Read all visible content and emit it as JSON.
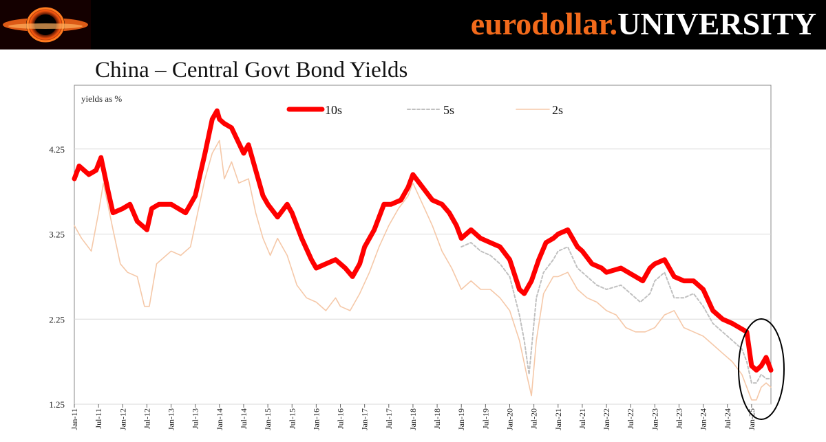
{
  "header": {
    "brand_part1": "eurodollar.",
    "brand_part2": "UNIVERSITY",
    "colors": {
      "banner": "#000000",
      "brand_orange": "#f26a1b",
      "brand_white": "#ffffff"
    }
  },
  "page_title": "China – Central Govt Bond Yields",
  "chart_data": {
    "type": "line",
    "title": "China – Central Govt Bond Yields",
    "ylabel": "yields as %",
    "xlabel": "",
    "yticks": [
      1.25,
      2.25,
      3.25,
      4.25
    ],
    "ytick_labels": [
      "1.25",
      "2.25",
      "3.25",
      "4.25"
    ],
    "ylim": [
      1.25,
      5.0
    ],
    "xlim": [
      2011.0,
      2025.4
    ],
    "xtick_labels": [
      "Jan-11",
      "Jul-11",
      "Jan-12",
      "Jul-12",
      "Jan-13",
      "Jul-13",
      "Jan-14",
      "Jul-14",
      "Jan-15",
      "Jul-15",
      "Jan-16",
      "Jul-16",
      "Jan-17",
      "Jul-17",
      "Jan-18",
      "Jul-18",
      "Jan-19",
      "Jul-19",
      "Jan-20",
      "Jul-20",
      "Jan-21",
      "Jul-21",
      "Jan-22",
      "Jul-22",
      "Jan-23",
      "Jul-23",
      "Jan-24",
      "Jul-24",
      "Jan-25"
    ],
    "grid": "horizontal",
    "legend_position": "top",
    "annotation": "ellipse highlighting recent yield drop (late 2024 – early 2025)",
    "series": [
      {
        "name": "10s",
        "color": "#ff0000",
        "style": "solid-thick",
        "x": [
          2011.0,
          2011.1,
          2011.3,
          2011.45,
          2011.55,
          2011.7,
          2011.8,
          2012.0,
          2012.15,
          2012.3,
          2012.5,
          2012.6,
          2012.75,
          2013.0,
          2013.3,
          2013.5,
          2013.6,
          2013.7,
          2013.85,
          2013.95,
          2014.0,
          2014.1,
          2014.25,
          2014.5,
          2014.6,
          2014.75,
          2014.9,
          2015.0,
          2015.2,
          2015.4,
          2015.5,
          2015.7,
          2015.9,
          2016.0,
          2016.2,
          2016.4,
          2016.6,
          2016.75,
          2016.9,
          2017.0,
          2017.2,
          2017.4,
          2017.55,
          2017.75,
          2017.9,
          2018.0,
          2018.2,
          2018.4,
          2018.6,
          2018.75,
          2018.9,
          2019.0,
          2019.2,
          2019.4,
          2019.6,
          2019.8,
          2020.0,
          2020.2,
          2020.3,
          2020.45,
          2020.6,
          2020.75,
          2020.9,
          2021.0,
          2021.2,
          2021.4,
          2021.5,
          2021.7,
          2021.9,
          2022.0,
          2022.3,
          2022.6,
          2022.75,
          2022.9,
          2023.0,
          2023.2,
          2023.4,
          2023.6,
          2023.8,
          2024.0,
          2024.2,
          2024.4,
          2024.6,
          2024.75,
          2024.9,
          2025.0,
          2025.1,
          2025.2,
          2025.3,
          2025.4
        ],
        "values": [
          3.9,
          4.05,
          3.95,
          4.0,
          4.15,
          3.75,
          3.5,
          3.55,
          3.6,
          3.4,
          3.3,
          3.55,
          3.6,
          3.6,
          3.5,
          3.7,
          3.95,
          4.2,
          4.6,
          4.7,
          4.6,
          4.55,
          4.5,
          4.2,
          4.3,
          4.0,
          3.7,
          3.6,
          3.45,
          3.6,
          3.5,
          3.2,
          2.95,
          2.85,
          2.9,
          2.95,
          2.85,
          2.75,
          2.9,
          3.1,
          3.3,
          3.6,
          3.6,
          3.65,
          3.8,
          3.95,
          3.8,
          3.65,
          3.6,
          3.5,
          3.35,
          3.2,
          3.3,
          3.2,
          3.15,
          3.1,
          2.95,
          2.6,
          2.55,
          2.7,
          2.95,
          3.15,
          3.2,
          3.25,
          3.3,
          3.1,
          3.05,
          2.9,
          2.85,
          2.8,
          2.85,
          2.75,
          2.7,
          2.85,
          2.9,
          2.95,
          2.75,
          2.7,
          2.7,
          2.6,
          2.35,
          2.25,
          2.2,
          2.15,
          2.1,
          1.7,
          1.65,
          1.7,
          1.8,
          1.65
        ]
      },
      {
        "name": "5s",
        "color": "#c0c0c0",
        "style": "dashed",
        "x": [
          2019.0,
          2019.2,
          2019.4,
          2019.6,
          2019.8,
          2020.0,
          2020.2,
          2020.3,
          2020.4,
          2020.45,
          2020.55,
          2020.7,
          2020.9,
          2021.0,
          2021.2,
          2021.4,
          2021.6,
          2021.8,
          2022.0,
          2022.3,
          2022.5,
          2022.7,
          2022.9,
          2023.0,
          2023.2,
          2023.4,
          2023.6,
          2023.8,
          2024.0,
          2024.2,
          2024.4,
          2024.6,
          2024.8,
          2024.9,
          2025.0,
          2025.1,
          2025.2,
          2025.3,
          2025.4
        ],
        "values": [
          3.1,
          3.15,
          3.05,
          3.0,
          2.9,
          2.75,
          2.3,
          2.0,
          1.6,
          1.9,
          2.5,
          2.8,
          2.95,
          3.05,
          3.1,
          2.85,
          2.75,
          2.65,
          2.6,
          2.65,
          2.55,
          2.45,
          2.55,
          2.7,
          2.8,
          2.5,
          2.5,
          2.55,
          2.4,
          2.2,
          2.1,
          2.0,
          1.9,
          1.75,
          1.5,
          1.5,
          1.6,
          1.55,
          1.55
        ]
      },
      {
        "name": "2s",
        "color": "#f5c8a8",
        "style": "solid-thin",
        "x": [
          2011.0,
          2011.15,
          2011.35,
          2011.5,
          2011.6,
          2011.8,
          2011.95,
          2012.1,
          2012.3,
          2012.45,
          2012.55,
          2012.7,
          2012.9,
          2013.0,
          2013.2,
          2013.4,
          2013.55,
          2013.7,
          2013.85,
          2014.0,
          2014.1,
          2014.25,
          2014.4,
          2014.6,
          2014.75,
          2014.9,
          2015.05,
          2015.2,
          2015.4,
          2015.6,
          2015.8,
          2016.0,
          2016.2,
          2016.4,
          2016.5,
          2016.7,
          2016.9,
          2017.1,
          2017.3,
          2017.5,
          2017.7,
          2017.9,
          2018.0,
          2018.2,
          2018.4,
          2018.6,
          2018.8,
          2019.0,
          2019.2,
          2019.4,
          2019.6,
          2019.8,
          2020.0,
          2020.2,
          2020.35,
          2020.45,
          2020.55,
          2020.7,
          2020.9,
          2021.0,
          2021.2,
          2021.4,
          2021.6,
          2021.8,
          2022.0,
          2022.2,
          2022.4,
          2022.6,
          2022.8,
          2023.0,
          2023.2,
          2023.4,
          2023.6,
          2023.8,
          2024.0,
          2024.2,
          2024.4,
          2024.6,
          2024.8,
          2024.9,
          2025.0,
          2025.1,
          2025.2,
          2025.3,
          2025.4
        ],
        "values": [
          3.35,
          3.2,
          3.05,
          3.5,
          3.85,
          3.3,
          2.9,
          2.8,
          2.75,
          2.4,
          2.4,
          2.9,
          3.0,
          3.05,
          3.0,
          3.1,
          3.5,
          3.9,
          4.2,
          4.35,
          3.9,
          4.1,
          3.85,
          3.9,
          3.5,
          3.2,
          3.0,
          3.2,
          3.0,
          2.65,
          2.5,
          2.45,
          2.35,
          2.5,
          2.4,
          2.35,
          2.55,
          2.8,
          3.1,
          3.35,
          3.55,
          3.7,
          3.85,
          3.6,
          3.35,
          3.05,
          2.85,
          2.6,
          2.7,
          2.6,
          2.6,
          2.5,
          2.35,
          2.0,
          1.6,
          1.35,
          2.0,
          2.55,
          2.75,
          2.75,
          2.8,
          2.6,
          2.5,
          2.45,
          2.35,
          2.3,
          2.15,
          2.1,
          2.1,
          2.15,
          2.3,
          2.35,
          2.15,
          2.1,
          2.05,
          1.95,
          1.85,
          1.75,
          1.6,
          1.45,
          1.3,
          1.3,
          1.45,
          1.5,
          1.45
        ]
      }
    ]
  }
}
